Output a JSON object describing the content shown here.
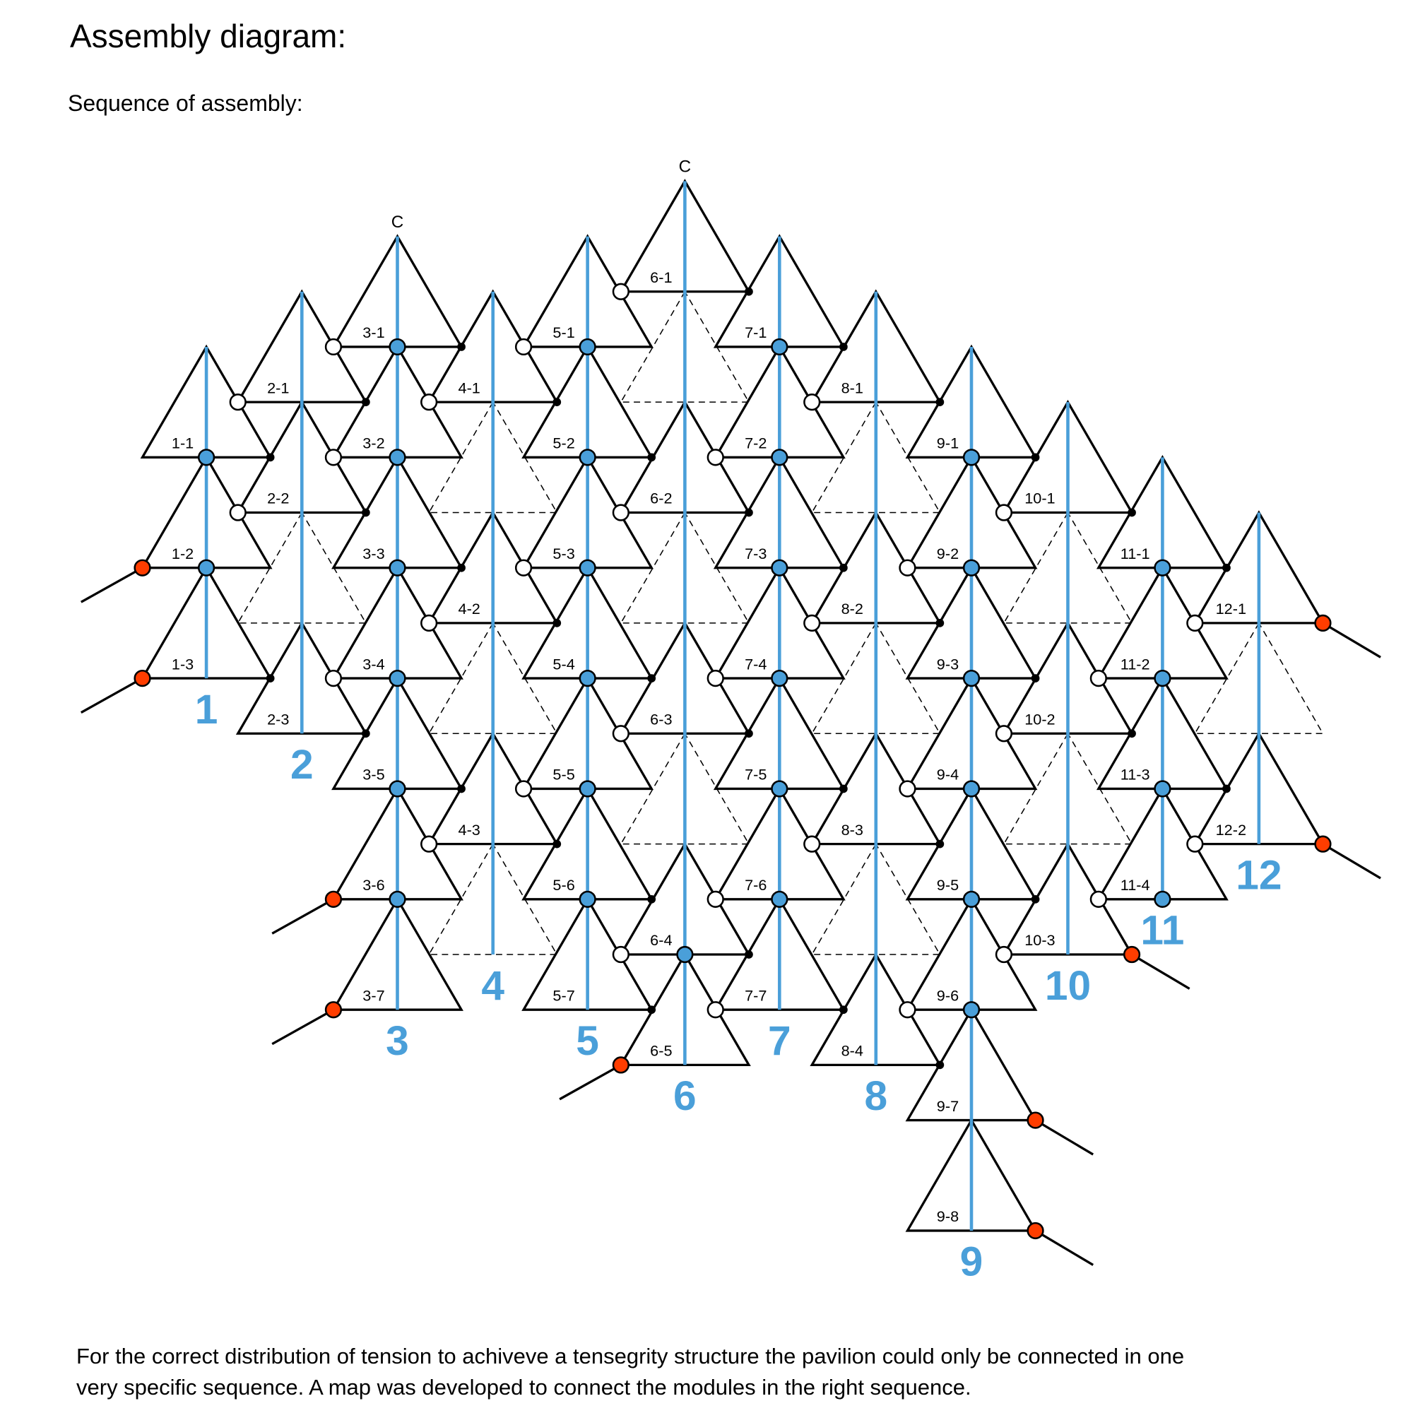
{
  "title": "Assembly diagram:",
  "subtitle": "Sequence of assembly:",
  "footer": [
    "For the correct distribution of tension to achiveve a tensegrity structure the pavilion could only be connected in one",
    "very specific sequence. A map was developed to connect the modules in the right sequence."
  ],
  "colors": {
    "strut": "#4a9fd9",
    "anchor": "#ff3d00",
    "joint_open": "#ffffff",
    "joint_closed": "#000000",
    "line": "#000000"
  },
  "columns": [
    {
      "number": "1",
      "modules": [
        {
          "label": "1-1",
          "left": "none",
          "right": "black",
          "center": "blue"
        },
        {
          "label": "1-2",
          "left": "red",
          "right": "none",
          "center": "blue"
        },
        {
          "label": "1-3",
          "left": "red",
          "right": "black",
          "center": "none"
        }
      ]
    },
    {
      "number": "2",
      "modules": [
        {
          "label": "2-1",
          "left": "white",
          "right": "black",
          "center": "none"
        },
        {
          "label": "2-2",
          "left": "white",
          "right": "black",
          "center": "none"
        },
        {
          "label": "2-3",
          "left": "none",
          "right": "black",
          "center": "none"
        }
      ]
    },
    {
      "number": "3",
      "top_label": "C",
      "modules": [
        {
          "label": "3-1",
          "left": "white",
          "right": "black",
          "center": "blue"
        },
        {
          "label": "3-2",
          "left": "white",
          "right": "none",
          "center": "blue"
        },
        {
          "label": "3-3",
          "left": "none",
          "right": "black",
          "center": "blue"
        },
        {
          "label": "3-4",
          "left": "white",
          "right": "none",
          "center": "blue"
        },
        {
          "label": "3-5",
          "left": "none",
          "right": "black",
          "center": "blue"
        },
        {
          "label": "3-6",
          "left": "red",
          "right": "none",
          "center": "blue"
        },
        {
          "label": "3-7",
          "left": "red",
          "right": "none",
          "center": "none"
        }
      ]
    },
    {
      "number": "4",
      "modules": [
        {
          "label": "4-1",
          "left": "white",
          "right": "black",
          "center": "none"
        },
        {
          "label": "4-2",
          "left": "white",
          "right": "black",
          "center": "none"
        },
        {
          "label": "4-3",
          "left": "white",
          "right": "black",
          "center": "none"
        }
      ]
    },
    {
      "number": "5",
      "modules": [
        {
          "label": "5-1",
          "left": "white",
          "right": "none",
          "center": "blue"
        },
        {
          "label": "5-2",
          "left": "none",
          "right": "black",
          "center": "blue"
        },
        {
          "label": "5-3",
          "left": "white",
          "right": "none",
          "center": "blue"
        },
        {
          "label": "5-4",
          "left": "none",
          "right": "black",
          "center": "blue"
        },
        {
          "label": "5-5",
          "left": "white",
          "right": "none",
          "center": "blue"
        },
        {
          "label": "5-6",
          "left": "none",
          "right": "black",
          "center": "blue"
        },
        {
          "label": "5-7",
          "left": "none",
          "right": "black",
          "center": "none"
        }
      ]
    },
    {
      "number": "6",
      "top_label": "C",
      "modules": [
        {
          "label": "6-1",
          "left": "white",
          "right": "black",
          "center": "none"
        },
        {
          "label": "6-2",
          "left": "white",
          "right": "black",
          "center": "none"
        },
        {
          "label": "6-3",
          "left": "white",
          "right": "black",
          "center": "none"
        },
        {
          "label": "6-4",
          "left": "white",
          "right": "black",
          "center": "blue"
        },
        {
          "label": "6-5",
          "left": "red",
          "right": "none",
          "center": "none"
        }
      ]
    },
    {
      "number": "7",
      "modules": [
        {
          "label": "7-1",
          "left": "none",
          "right": "black",
          "center": "blue"
        },
        {
          "label": "7-2",
          "left": "white",
          "right": "none",
          "center": "blue"
        },
        {
          "label": "7-3",
          "left": "none",
          "right": "black",
          "center": "blue"
        },
        {
          "label": "7-4",
          "left": "white",
          "right": "none",
          "center": "blue"
        },
        {
          "label": "7-5",
          "left": "none",
          "right": "black",
          "center": "blue"
        },
        {
          "label": "7-6",
          "left": "white",
          "right": "none",
          "center": "blue"
        },
        {
          "label": "7-7",
          "left": "white",
          "right": "black",
          "center": "none"
        }
      ]
    },
    {
      "number": "8",
      "modules": [
        {
          "label": "8-1",
          "left": "white",
          "right": "black",
          "center": "none"
        },
        {
          "label": "8-2",
          "left": "white",
          "right": "black",
          "center": "none"
        },
        {
          "label": "8-3",
          "left": "white",
          "right": "black",
          "center": "none"
        },
        {
          "label": "8-4",
          "left": "none",
          "right": "black",
          "center": "none"
        }
      ]
    },
    {
      "number": "9",
      "modules": [
        {
          "label": "9-1",
          "left": "none",
          "right": "black",
          "center": "blue"
        },
        {
          "label": "9-2",
          "left": "white",
          "right": "none",
          "center": "blue"
        },
        {
          "label": "9-3",
          "left": "none",
          "right": "black",
          "center": "blue"
        },
        {
          "label": "9-4",
          "left": "white",
          "right": "none",
          "center": "blue"
        },
        {
          "label": "9-5",
          "left": "none",
          "right": "black",
          "center": "blue"
        },
        {
          "label": "9-6",
          "left": "white",
          "right": "none",
          "center": "blue"
        },
        {
          "label": "9-7",
          "left": "none",
          "right": "red",
          "center": "none"
        },
        {
          "label": "9-8",
          "left": "none",
          "right": "red",
          "center": "none"
        }
      ]
    },
    {
      "number": "10",
      "modules": [
        {
          "label": "10-1",
          "left": "white",
          "right": "black",
          "center": "none"
        },
        {
          "label": "10-2",
          "left": "white",
          "right": "black",
          "center": "none"
        },
        {
          "label": "10-3",
          "left": "white",
          "right": "red",
          "center": "none"
        }
      ]
    },
    {
      "number": "11",
      "modules": [
        {
          "label": "11-1",
          "left": "none",
          "right": "black",
          "center": "blue"
        },
        {
          "label": "11-2",
          "left": "white",
          "right": "none",
          "center": "blue"
        },
        {
          "label": "11-3",
          "left": "none",
          "right": "black",
          "center": "blue"
        },
        {
          "label": "11-4",
          "left": "white",
          "right": "none",
          "center": "blue"
        }
      ]
    },
    {
      "number": "12",
      "modules": [
        {
          "label": "12-1",
          "left": "white",
          "right": "red",
          "center": "none"
        },
        {
          "label": "12-2",
          "left": "white",
          "right": "red",
          "center": "none"
        }
      ]
    }
  ]
}
